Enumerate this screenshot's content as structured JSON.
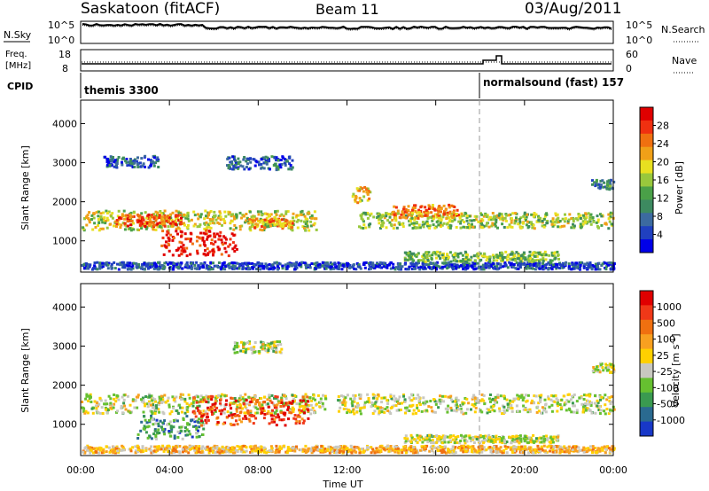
{
  "header": {
    "station": "Saskatoon (fitACF)",
    "beam": "Beam 11",
    "date": "03/Aug/2011"
  },
  "top_panel": {
    "left_label": "N.Sky",
    "right_label": "N.Search",
    "left_ticks": [
      "10^5",
      "10^0"
    ],
    "right_ticks": [
      "10^5",
      "10^0"
    ]
  },
  "freq_panel": {
    "left_label_1": "Freq.",
    "left_label_2": "[MHz]",
    "right_label": "Nave",
    "left_ticks": [
      "18",
      "8"
    ],
    "right_ticks": [
      "60",
      "0"
    ]
  },
  "cpid": {
    "label": "CPID",
    "program_1": "themis 3300",
    "program_2": "normalsound (fast) 157"
  },
  "x_axis": {
    "label": "Time UT",
    "ticks": [
      "00:00",
      "04:00",
      "08:00",
      "12:00",
      "16:00",
      "20:00",
      "00:00"
    ]
  },
  "chart_data": [
    {
      "type": "heatmap",
      "name": "power",
      "ylabel": "Slant Range [km]",
      "ylim": [
        200,
        4600
      ],
      "yticks": [
        "4000",
        "3000",
        "2000",
        "1000"
      ],
      "xlim_hours": [
        0,
        24
      ],
      "colorbar": {
        "label": "Power [dB]",
        "ticks": [
          "28",
          "24",
          "20",
          "16",
          "12",
          "8",
          "4"
        ],
        "colors": [
          "#0000e8",
          "#2040c0",
          "#3c6aa0",
          "#3d8a60",
          "#4aa048",
          "#98c83c",
          "#e8e020",
          "#f0a018",
          "#f07010",
          "#f03010",
          "#e00000"
        ]
      },
      "bands": [
        {
          "t": [
            0.0,
            10.6
          ],
          "r": [
            1300,
            1800
          ],
          "level": 0.55
        },
        {
          "t": [
            1.5,
            4.5
          ],
          "r": [
            1400,
            1700
          ],
          "level": 0.8
        },
        {
          "t": [
            3.6,
            7.0
          ],
          "r": [
            650,
            1300
          ],
          "level": 0.95
        },
        {
          "t": [
            7.5,
            9.5
          ],
          "r": [
            1350,
            1600
          ],
          "level": 0.7
        },
        {
          "t": [
            0.0,
            24.0
          ],
          "r": [
            300,
            480
          ],
          "level": 0.15
        },
        {
          "t": [
            1.0,
            3.5
          ],
          "r": [
            2900,
            3200
          ],
          "level": 0.2
        },
        {
          "t": [
            6.5,
            9.5
          ],
          "r": [
            2850,
            3200
          ],
          "level": 0.2
        },
        {
          "t": [
            12.5,
            24.0
          ],
          "r": [
            1350,
            1750
          ],
          "level": 0.5
        },
        {
          "t": [
            14.0,
            17.0
          ],
          "r": [
            1600,
            1950
          ],
          "level": 0.75
        },
        {
          "t": [
            14.5,
            21.5
          ],
          "r": [
            500,
            750
          ],
          "level": 0.45
        },
        {
          "t": [
            23.0,
            24.0
          ],
          "r": [
            2350,
            2600
          ],
          "level": 0.3
        },
        {
          "t": [
            12.2,
            13.0
          ],
          "r": [
            2000,
            2400
          ],
          "level": 0.6
        }
      ]
    },
    {
      "type": "heatmap",
      "name": "velocity",
      "ylabel": "Slant Range [km]",
      "ylim": [
        200,
        4600
      ],
      "yticks": [
        "4000",
        "3000",
        "2000",
        "1000"
      ],
      "xlim_hours": [
        0,
        24
      ],
      "colorbar": {
        "label": "Velocity [m s^-1]",
        "ticks": [
          "1000",
          "500",
          "100",
          "25",
          "-25",
          "-100",
          "-500",
          "-1000"
        ],
        "colors": [
          "#1838c8",
          "#2a6a90",
          "#3a9a50",
          "#66c030",
          "#c8c8c0",
          "#ffd000",
          "#f8a020",
          "#f07010",
          "#f03818",
          "#e00000"
        ]
      },
      "bands": [
        {
          "t": [
            0.0,
            11.0
          ],
          "r": [
            1300,
            1800
          ],
          "level": 0.45
        },
        {
          "t": [
            2.5,
            5.5
          ],
          "r": [
            650,
            1250
          ],
          "level": 0.25
        },
        {
          "t": [
            5.0,
            10.2
          ],
          "r": [
            1000,
            1750
          ],
          "level": 0.85
        },
        {
          "t": [
            6.8,
            9.0
          ],
          "r": [
            2850,
            3150
          ],
          "level": 0.45
        },
        {
          "t": [
            11.5,
            24.0
          ],
          "r": [
            1300,
            1800
          ],
          "level": 0.45
        },
        {
          "t": [
            14.5,
            21.5
          ],
          "r": [
            550,
            750
          ],
          "level": 0.45
        },
        {
          "t": [
            23.0,
            24.0
          ],
          "r": [
            2350,
            2600
          ],
          "level": 0.45
        },
        {
          "t": [
            0.0,
            24.0
          ],
          "r": [
            300,
            480
          ],
          "level": 0.6
        }
      ]
    }
  ]
}
